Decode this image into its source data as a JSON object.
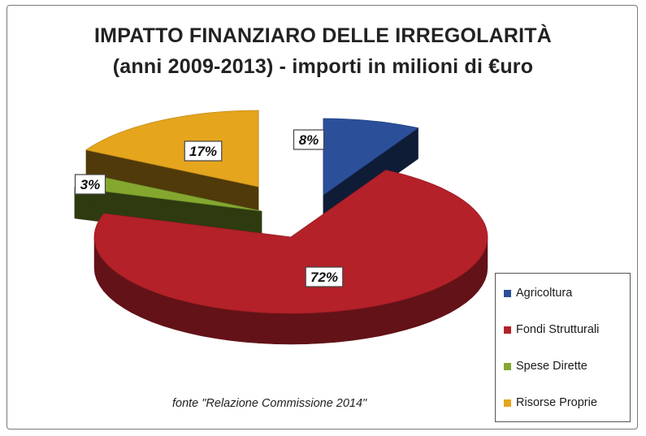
{
  "title_line1": "IMPATTO FINANZIARO DELLE IRREGOLARITÀ",
  "title_line2": "(anni 2009-2013) - importi in milioni di €uro",
  "source_note": "fonte \"Relazione Commissione 2014\"",
  "chart_data": {
    "type": "pie",
    "style": "3d-exploded",
    "title": "IMPATTO FINANZIARO DELLE IRREGOLARITÀ (anni 2009-2013) - importi in milioni di €uro",
    "legend_position": "bottom-right",
    "slices": [
      {
        "label": "Agricoltura",
        "value": 8,
        "value_label": "8%",
        "color": "#2c4f9a"
      },
      {
        "label": "Fondi Strutturali",
        "value": 72,
        "value_label": "72%",
        "color": "#b42129"
      },
      {
        "label": "Spese Dirette",
        "value": 3,
        "value_label": "3%",
        "color": "#84a82f"
      },
      {
        "label": "Risorse Proprie",
        "value": 17,
        "value_label": "17%",
        "color": "#e5a51d"
      }
    ]
  }
}
